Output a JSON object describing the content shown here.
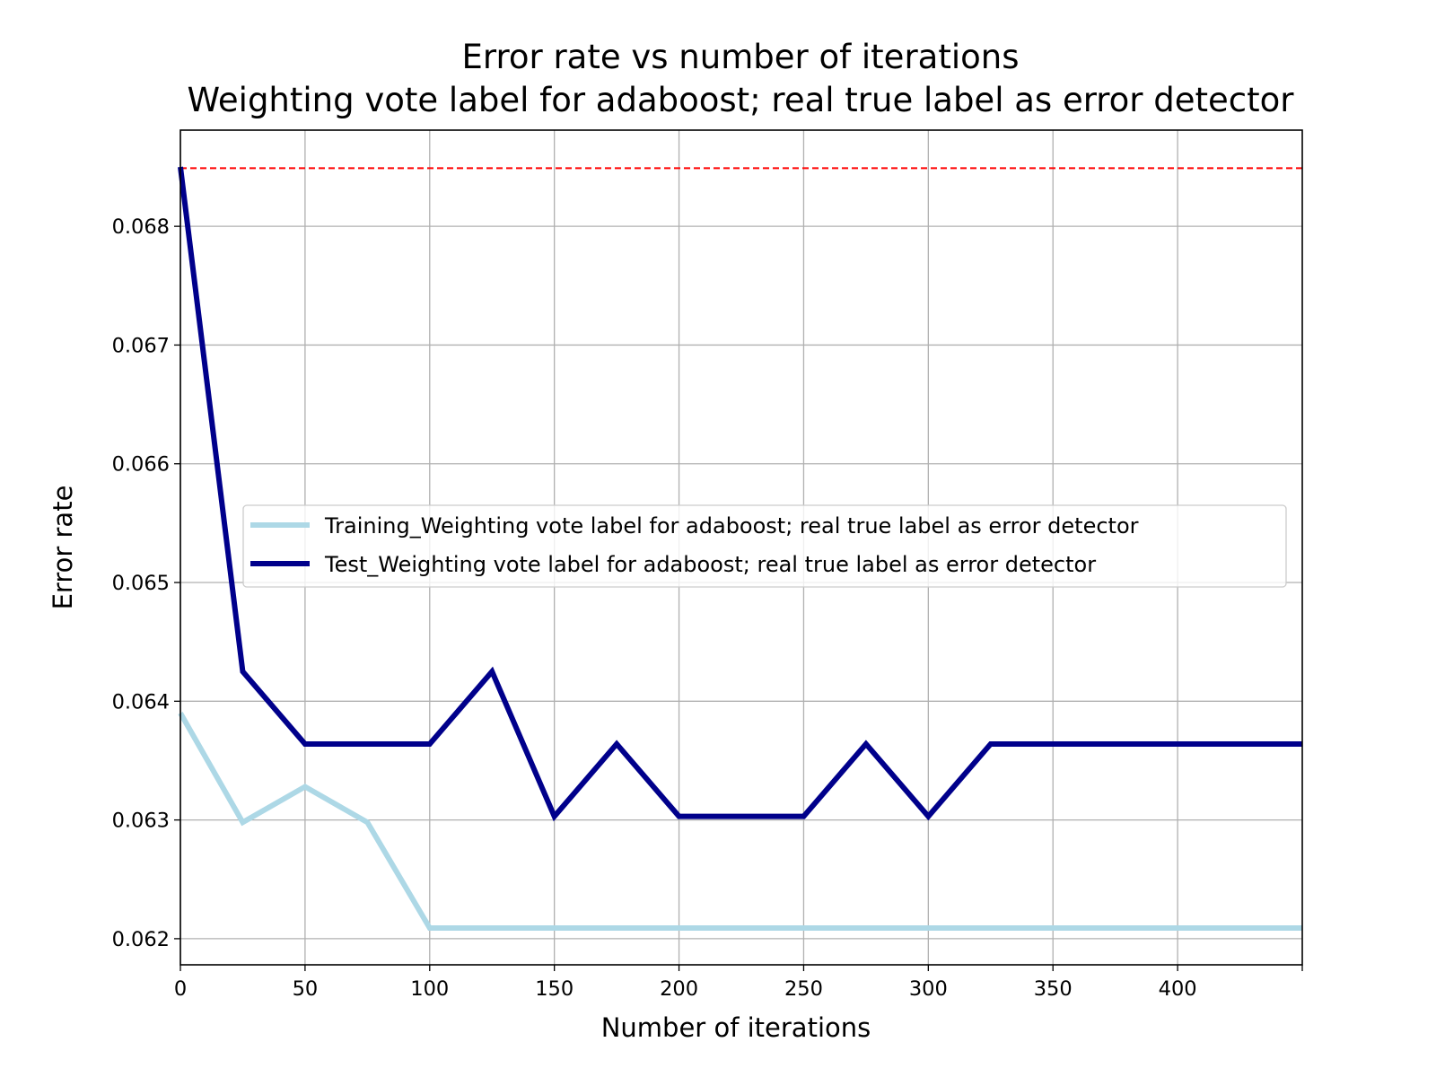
{
  "chart_data": {
    "type": "line",
    "title": [
      "Error rate vs number of iterations",
      "Weighting vote label for adaboost; real true label as error detector"
    ],
    "xlabel": "Number of iterations",
    "ylabel": "Error rate",
    "xlim": [
      0,
      450
    ],
    "ylim": [
      0.06178,
      0.06881
    ],
    "xticks": [
      0,
      50,
      100,
      150,
      200,
      250,
      300,
      350,
      400
    ],
    "xtick_labels": [
      "0",
      "50",
      "100",
      "150",
      "200",
      "250",
      "300",
      "350",
      "400"
    ],
    "yticks": [
      0.062,
      0.063,
      0.064,
      0.065,
      0.066,
      0.067,
      0.068
    ],
    "ytick_labels": [
      "0.062",
      "0.063",
      "0.064",
      "0.065",
      "0.066",
      "0.067",
      "0.068"
    ],
    "grid": true,
    "legend_position": "center-right",
    "x": [
      0,
      25,
      50,
      75,
      100,
      125,
      150,
      175,
      200,
      225,
      250,
      275,
      300,
      325,
      350,
      375,
      400,
      425,
      450
    ],
    "series": [
      {
        "name": "Training_Weighting vote label for adaboost; real true label as error detector",
        "color": "#add8e6",
        "values": [
          0.0639,
          0.06298,
          0.06328,
          0.06298,
          0.06209,
          0.06209,
          0.06209,
          0.06209,
          0.06209,
          0.06209,
          0.06209,
          0.06209,
          0.06209,
          0.06209,
          0.06209,
          0.06209,
          0.06209,
          0.06209,
          0.06209
        ]
      },
      {
        "name": "Test_Weighting vote label for adaboost; real true label as error detector",
        "color": "#00008b",
        "values": [
          0.0685,
          0.06425,
          0.06364,
          0.06364,
          0.06364,
          0.06425,
          0.06303,
          0.06364,
          0.06303,
          0.06303,
          0.06303,
          0.06364,
          0.06303,
          0.06364,
          0.06364,
          0.06364,
          0.06364,
          0.06364,
          0.06364
        ]
      }
    ],
    "reference_lines": [
      {
        "type": "horizontal",
        "value": 0.06849,
        "color": "#ff0000",
        "style": "dashed"
      }
    ]
  }
}
